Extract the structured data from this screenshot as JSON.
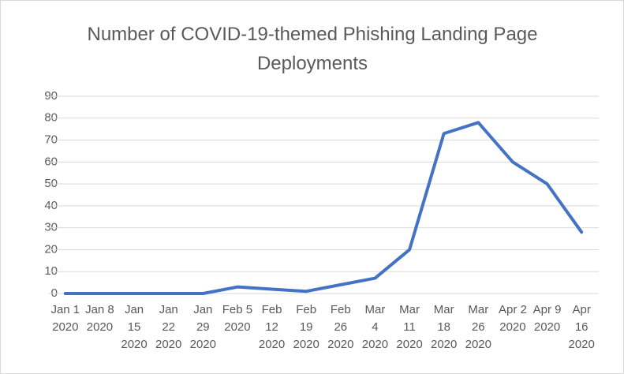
{
  "chart_data": {
    "type": "line",
    "title": "Number of COVID-19-themed Phishing Landing Page Deployments",
    "categories": [
      "Jan 1\n2020",
      "Jan 8\n2020",
      "Jan\n15\n2020",
      "Jan\n22\n2020",
      "Jan\n29\n2020",
      "Feb 5\n2020",
      "Feb\n12\n2020",
      "Feb\n19\n2020",
      "Feb\n26\n2020",
      "Mar\n4\n2020",
      "Mar\n11\n2020",
      "Mar\n18\n2020",
      "Mar\n26\n2020",
      "Apr 2\n2020",
      "Apr 9\n2020",
      "Apr\n16\n2020"
    ],
    "values": [
      0,
      0,
      0,
      0,
      0,
      3,
      2,
      1,
      4,
      7,
      20,
      73,
      78,
      60,
      50,
      28
    ],
    "color": "#4472c4",
    "ylim": [
      0,
      90
    ],
    "yticks": [
      0,
      10,
      20,
      30,
      40,
      50,
      60,
      70,
      80,
      90
    ],
    "grid": true
  }
}
